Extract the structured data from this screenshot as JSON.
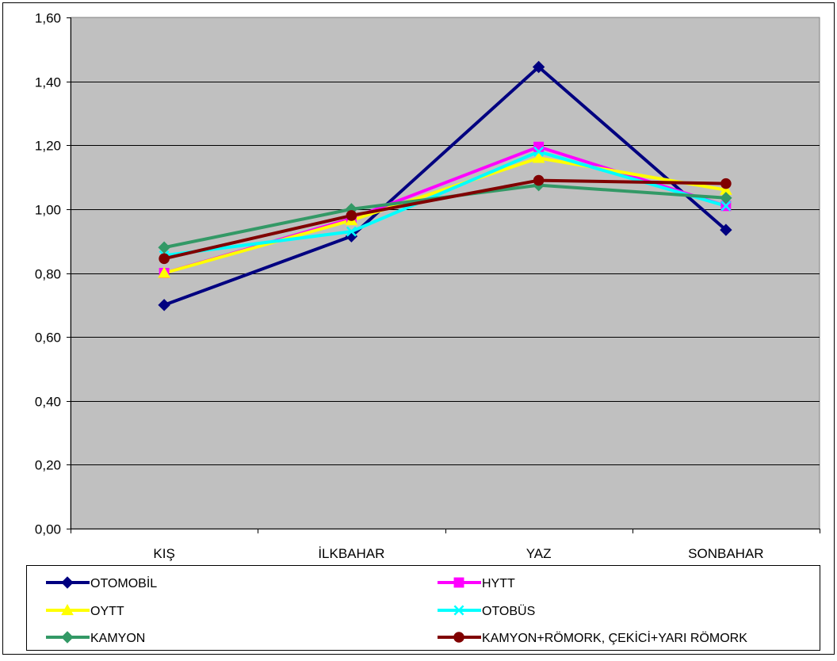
{
  "chart_data": {
    "type": "line",
    "categories": [
      "KIŞ",
      "İLKBAHAR",
      "YAZ",
      "SONBAHAR"
    ],
    "ylim": [
      0,
      1.6
    ],
    "yticks": [
      "0,00",
      "0,20",
      "0,40",
      "0,60",
      "0,80",
      "1,00",
      "1,20",
      "1,40",
      "1,60"
    ],
    "grid": true,
    "plot_background": "#C0C0C0",
    "legend_position": "bottom",
    "series": [
      {
        "name": "OTOMOBİL",
        "color": "#000080",
        "marker": "diamond",
        "values": [
          0.7,
          0.915,
          1.445,
          0.935
        ]
      },
      {
        "name": "HYTT",
        "color": "#FF00FF",
        "marker": "square",
        "values": [
          0.8,
          0.97,
          1.195,
          1.01
        ]
      },
      {
        "name": "OYTT",
        "color": "#FFFF00",
        "marker": "triangle",
        "values": [
          0.8,
          0.965,
          1.16,
          1.06
        ]
      },
      {
        "name": "OTOBÜS",
        "color": "#00FFFF",
        "marker": "x",
        "values": [
          0.855,
          0.93,
          1.18,
          1.01
        ]
      },
      {
        "name": "KAMYON",
        "color": "#339966",
        "marker": "diamond",
        "values": [
          0.88,
          1.0,
          1.075,
          1.035
        ]
      },
      {
        "name": "KAMYON+RÖMORK, ÇEKİCİ+YARI RÖMORK",
        "color": "#800000",
        "marker": "circle",
        "values": [
          0.845,
          0.98,
          1.09,
          1.08
        ]
      }
    ]
  }
}
